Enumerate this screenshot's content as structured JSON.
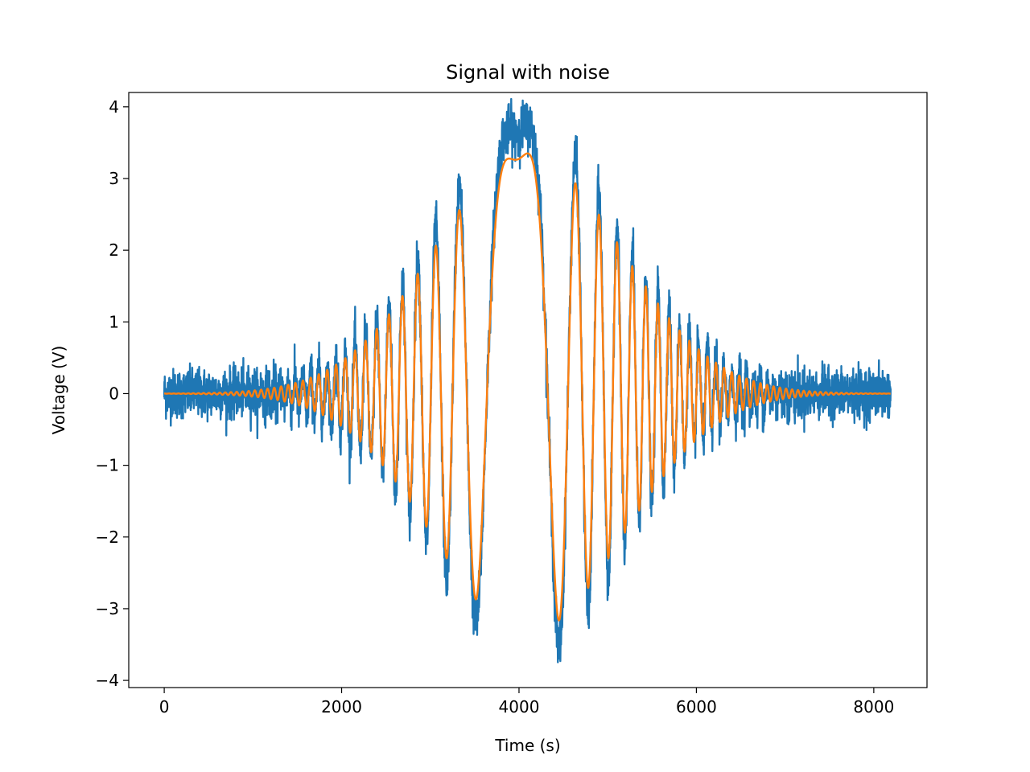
{
  "chart_data": {
    "type": "line",
    "title": "Signal with noise",
    "xlabel": "Time (s)",
    "ylabel": "Voltage (V)",
    "xlim": [
      -400,
      8600
    ],
    "ylim": [
      -4.1,
      4.2
    ],
    "x_ticks": [
      {
        "value": 0,
        "label": "0"
      },
      {
        "value": 2000,
        "label": "2000"
      },
      {
        "value": 4000,
        "label": "4000"
      },
      {
        "value": 6000,
        "label": "6000"
      },
      {
        "value": 8000,
        "label": "8000"
      }
    ],
    "y_ticks": [
      {
        "value": -4,
        "label": "−4"
      },
      {
        "value": -3,
        "label": "−3"
      },
      {
        "value": -2,
        "label": "−2"
      },
      {
        "value": -1,
        "label": "−1"
      },
      {
        "value": 0,
        "label": "0"
      },
      {
        "value": 1,
        "label": "1"
      },
      {
        "value": 2,
        "label": "2"
      },
      {
        "value": 3,
        "label": "3"
      },
      {
        "value": 4,
        "label": "4"
      }
    ],
    "grid": false,
    "series": [
      {
        "color": "#1f77b4",
        "x_range": [
          0,
          8191
        ],
        "description": "noisy signal",
        "envelope_peak": 3.75,
        "noise_level": 0.55
      },
      {
        "color": "#ff7f0e",
        "x_range": [
          0,
          8191
        ],
        "description": "clean signal",
        "envelope_peak": 3.35
      }
    ]
  }
}
